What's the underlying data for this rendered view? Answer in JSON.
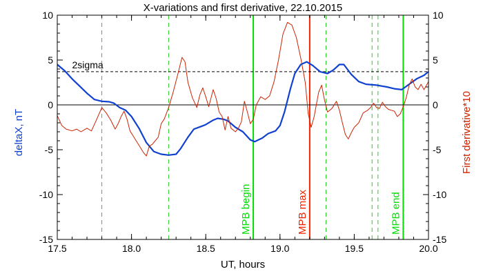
{
  "chart_data": {
    "type": "line",
    "title": "X-variations and first derivative, 22.10.2015",
    "xlabel": "UT, hours",
    "ylabel_left": "deltaX, nT",
    "ylabel_right": "First derivative*10",
    "xlim": [
      17.5,
      20.0
    ],
    "ylim": [
      -15,
      10
    ],
    "x_ticks": [
      17.5,
      18.0,
      18.5,
      19.0,
      19.5,
      20.0
    ],
    "x_tick_labels": [
      "17.5",
      "18.0",
      "18.5",
      "19.0",
      "19.5",
      "20.0"
    ],
    "y_ticks": [
      -15,
      -10,
      -5,
      0,
      5,
      10
    ],
    "y_tick_labels": [
      "-15",
      "-10",
      "-5",
      "0",
      "5",
      "10"
    ],
    "grid": false,
    "legend": "none",
    "threshold": {
      "label": "2sigma",
      "value": 3.7
    },
    "zero_line": 0,
    "dashed_markers": [
      17.8,
      18.25,
      19.31,
      19.62,
      19.66
    ],
    "event_markers": [
      {
        "x": 18.82,
        "label": "MPB begin",
        "color": "#00dd00"
      },
      {
        "x": 19.2,
        "label": "MPB max",
        "color": "#ee2200"
      },
      {
        "x": 19.83,
        "label": "MPB end",
        "color": "#00dd00"
      }
    ],
    "series": [
      {
        "name": "deltaX, nT",
        "color": "#1040d0",
        "points": [
          [
            17.5,
            4.5
          ],
          [
            17.55,
            3.8
          ],
          [
            17.6,
            2.9
          ],
          [
            17.65,
            2.1
          ],
          [
            17.7,
            1.3
          ],
          [
            17.75,
            0.6
          ],
          [
            17.8,
            0.4
          ],
          [
            17.85,
            0.35
          ],
          [
            17.88,
            0.2
          ],
          [
            17.92,
            -0.3
          ],
          [
            17.96,
            -0.6
          ],
          [
            18.0,
            -1.3
          ],
          [
            18.05,
            -2.6
          ],
          [
            18.1,
            -4.2
          ],
          [
            18.15,
            -5.2
          ],
          [
            18.2,
            -5.5
          ],
          [
            18.25,
            -5.6
          ],
          [
            18.3,
            -5.5
          ],
          [
            18.33,
            -4.9
          ],
          [
            18.38,
            -3.6
          ],
          [
            18.42,
            -2.7
          ],
          [
            18.47,
            -2.4
          ],
          [
            18.5,
            -2.2
          ],
          [
            18.55,
            -1.7
          ],
          [
            18.58,
            -1.5
          ],
          [
            18.62,
            -1.6
          ],
          [
            18.65,
            -1.8
          ],
          [
            18.7,
            -2.5
          ],
          [
            18.75,
            -3.0
          ],
          [
            18.8,
            -3.9
          ],
          [
            18.83,
            -4.1
          ],
          [
            18.88,
            -3.7
          ],
          [
            18.92,
            -3.2
          ],
          [
            18.97,
            -2.9
          ],
          [
            19.0,
            -2.3
          ],
          [
            19.03,
            -0.8
          ],
          [
            19.07,
            1.8
          ],
          [
            19.1,
            3.5
          ],
          [
            19.14,
            4.5
          ],
          [
            19.18,
            4.8
          ],
          [
            19.22,
            4.4
          ],
          [
            19.27,
            3.7
          ],
          [
            19.32,
            3.5
          ],
          [
            19.36,
            3.9
          ],
          [
            19.4,
            4.5
          ],
          [
            19.43,
            4.5
          ],
          [
            19.48,
            3.4
          ],
          [
            19.53,
            2.6
          ],
          [
            19.58,
            2.3
          ],
          [
            19.65,
            2.2
          ],
          [
            19.72,
            2.0
          ],
          [
            19.77,
            1.8
          ],
          [
            19.82,
            1.7
          ],
          [
            19.87,
            2.3
          ],
          [
            19.92,
            2.9
          ],
          [
            19.97,
            3.3
          ],
          [
            20.0,
            3.7
          ]
        ]
      },
      {
        "name": "First derivative*10",
        "color": "#cc2200",
        "points": [
          [
            17.5,
            -1.2
          ],
          [
            17.53,
            -2.3
          ],
          [
            17.56,
            -2.7
          ],
          [
            17.6,
            -2.9
          ],
          [
            17.63,
            -2.7
          ],
          [
            17.66,
            -3.0
          ],
          [
            17.7,
            -2.6
          ],
          [
            17.73,
            -2.9
          ],
          [
            17.76,
            -1.8
          ],
          [
            17.8,
            -0.3
          ],
          [
            17.83,
            -0.9
          ],
          [
            17.86,
            -1.7
          ],
          [
            17.89,
            -2.7
          ],
          [
            17.91,
            -2.1
          ],
          [
            17.93,
            -1.3
          ],
          [
            17.95,
            -0.7
          ],
          [
            17.97,
            -1.6
          ],
          [
            17.99,
            -2.9
          ],
          [
            18.02,
            -3.7
          ],
          [
            18.05,
            -4.5
          ],
          [
            18.08,
            -5.3
          ],
          [
            18.1,
            -5.7
          ],
          [
            18.12,
            -4.6
          ],
          [
            18.14,
            -4.4
          ],
          [
            18.16,
            -4.0
          ],
          [
            18.18,
            -3.6
          ],
          [
            18.2,
            -2.1
          ],
          [
            18.22,
            -1.6
          ],
          [
            18.25,
            -0.3
          ],
          [
            18.28,
            1.4
          ],
          [
            18.31,
            3.3
          ],
          [
            18.34,
            5.3
          ],
          [
            18.36,
            4.8
          ],
          [
            18.38,
            2.5
          ],
          [
            18.41,
            0.8
          ],
          [
            18.44,
            -0.3
          ],
          [
            18.46,
            1.1
          ],
          [
            18.48,
            1.9
          ],
          [
            18.5,
            0.9
          ],
          [
            18.52,
            -0.2
          ],
          [
            18.55,
            1.7
          ],
          [
            18.57,
            0.7
          ],
          [
            18.59,
            -0.8
          ],
          [
            18.61,
            -1.3
          ],
          [
            18.63,
            -2.8
          ],
          [
            18.65,
            -1.3
          ],
          [
            18.67,
            -2.6
          ],
          [
            18.7,
            -3.0
          ],
          [
            18.72,
            -2.6
          ],
          [
            18.74,
            -1.9
          ],
          [
            18.76,
            0.4
          ],
          [
            18.78,
            -0.8
          ],
          [
            18.8,
            -2.1
          ],
          [
            18.82,
            -1.6
          ],
          [
            18.84,
            0.0
          ],
          [
            18.87,
            0.9
          ],
          [
            18.9,
            0.6
          ],
          [
            18.93,
            1.0
          ],
          [
            18.96,
            2.6
          ],
          [
            18.99,
            5.0
          ],
          [
            19.02,
            7.9
          ],
          [
            19.05,
            9.2
          ],
          [
            19.08,
            8.9
          ],
          [
            19.11,
            7.5
          ],
          [
            19.14,
            5.2
          ],
          [
            19.17,
            2.5
          ],
          [
            19.19,
            -1.0
          ],
          [
            19.21,
            -2.5
          ],
          [
            19.23,
            -1.3
          ],
          [
            19.26,
            1.4
          ],
          [
            19.28,
            2.2
          ],
          [
            19.3,
            0.5
          ],
          [
            19.32,
            -0.8
          ],
          [
            19.35,
            -0.4
          ],
          [
            19.38,
            0.4
          ],
          [
            19.4,
            -0.6
          ],
          [
            19.42,
            -2.0
          ],
          [
            19.44,
            -3.3
          ],
          [
            19.46,
            -3.8
          ],
          [
            19.48,
            -3.1
          ],
          [
            19.5,
            -2.5
          ],
          [
            19.53,
            -2.0
          ],
          [
            19.56,
            -0.9
          ],
          [
            19.59,
            -0.6
          ],
          [
            19.61,
            -0.3
          ],
          [
            19.63,
            0.2
          ],
          [
            19.65,
            -0.3
          ],
          [
            19.67,
            -0.4
          ],
          [
            19.69,
            0.3
          ],
          [
            19.71,
            -0.2
          ],
          [
            19.73,
            -0.5
          ],
          [
            19.75,
            -0.6
          ],
          [
            19.77,
            -0.7
          ],
          [
            19.79,
            -1.3
          ],
          [
            19.81,
            -1.0
          ],
          [
            19.83,
            -0.2
          ],
          [
            19.85,
            0.8
          ],
          [
            19.87,
            2.2
          ],
          [
            19.89,
            2.9
          ],
          [
            19.91,
            2.0
          ],
          [
            19.93,
            1.7
          ],
          [
            19.95,
            2.3
          ],
          [
            19.97,
            1.7
          ],
          [
            20.0,
            2.6
          ]
        ]
      }
    ]
  }
}
